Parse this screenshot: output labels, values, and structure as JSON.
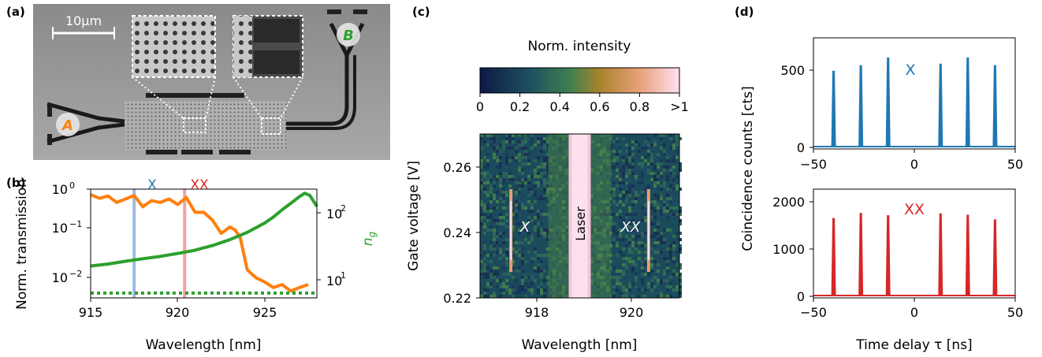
{
  "panels": {
    "a": {
      "label": "(a)",
      "scale_bar": "10µm",
      "port_a": "A",
      "port_b": "B"
    },
    "b": {
      "label": "(b)",
      "ylabel": "Norm. transmission",
      "ylabel_right": "n",
      "ylabel_right_sub": "g",
      "xlabel": "Wavelength [nm]",
      "marker_x": "X",
      "marker_xx": "XX",
      "xticks": [
        "915",
        "920",
        "925"
      ],
      "yticks_left": [
        "10",
        "10",
        "10"
      ],
      "yticks_left_exp": [
        "0",
        "−1",
        "−2"
      ],
      "yticks_right": [
        "10",
        "10"
      ],
      "yticks_right_exp": [
        "2",
        "1"
      ]
    },
    "c": {
      "label": "(c)",
      "colorbar_title": "Norm. intensity",
      "colorbar_ticks": [
        "0",
        "0.2",
        "0.4",
        "0.6",
        "0.8",
        ">1"
      ],
      "ylabel": "Gate voltage [V]",
      "xlabel": "Wavelength [nm]",
      "xticks": [
        "918",
        "920"
      ],
      "yticks": [
        "0.26",
        "0.24",
        "0.22"
      ],
      "annot_x": "X",
      "annot_xx": "XX",
      "annot_laser": "Laser"
    },
    "d": {
      "label": "(d)",
      "ylabel": "Coincidence counts [cts]",
      "xlabel": "Time delay τ [ns]",
      "top_label": "X",
      "bottom_label": "XX",
      "xticks": [
        "−50",
        "0",
        "50"
      ],
      "top_yticks": [
        "500",
        "0"
      ],
      "bottom_yticks": [
        "2000",
        "1000",
        "0"
      ]
    }
  },
  "colors": {
    "blue": "#1f77b4",
    "orange": "#ff7f0e",
    "green": "#2ca02c",
    "red": "#d62728"
  },
  "chart_data": [
    {
      "type": "line",
      "panel": "b",
      "xlim": [
        915,
        928
      ],
      "ylim_left": [
        0.0035,
        1.0
      ],
      "ylim_right": [
        6,
        170
      ],
      "log_left": true,
      "log_right": true,
      "series": [
        {
          "axis": "left",
          "color": "#ff7f0e",
          "x": [
            915,
            915.5,
            916,
            916.5,
            917,
            917.5,
            918,
            918.5,
            919,
            919.5,
            920,
            920.5,
            921,
            921.5,
            922,
            922.5,
            923,
            923.3,
            923.6,
            924,
            924.5,
            925,
            925.5,
            926,
            926.5,
            927,
            927.5
          ],
          "y": [
            0.75,
            0.62,
            0.7,
            0.5,
            0.6,
            0.72,
            0.4,
            0.55,
            0.5,
            0.6,
            0.45,
            0.65,
            0.3,
            0.3,
            0.2,
            0.1,
            0.14,
            0.12,
            0.08,
            0.015,
            0.01,
            0.008,
            0.006,
            0.007,
            0.005,
            0.006,
            0.007
          ]
        },
        {
          "axis": "right",
          "color": "#2ca02c",
          "x": [
            915,
            916,
            917,
            918,
            919,
            920,
            921,
            922,
            923,
            924,
            925,
            925.5,
            926,
            926.5,
            927,
            927.3,
            927.6,
            928
          ],
          "y": [
            16,
            17,
            18.5,
            20,
            21.5,
            23.5,
            26,
            30,
            36,
            45,
            60,
            72,
            90,
            110,
            135,
            150,
            140,
            100
          ]
        },
        {
          "axis": "left",
          "color": "#2ca02c",
          "style": "dotted",
          "x": [
            915,
            928
          ],
          "y": [
            0.0045,
            0.0045
          ]
        }
      ],
      "vlines": [
        917.5,
        920.4
      ]
    },
    {
      "type": "heatmap",
      "panel": "c",
      "xlim": [
        916.8,
        921
      ],
      "ylim": [
        0.22,
        0.27
      ],
      "lines": [
        {
          "name": "X",
          "wavelength": 917.45
        },
        {
          "name": "Laser",
          "wavelength": 918.9
        },
        {
          "name": "XX",
          "wavelength": 920.35
        }
      ],
      "colorbar_range": [
        0,
        1
      ]
    },
    {
      "type": "bar",
      "panel": "d-top",
      "xlim": [
        -50,
        50
      ],
      "ylim": [
        0,
        700
      ],
      "x": [
        -40,
        -26.5,
        -13,
        13,
        26.5,
        40
      ],
      "values": [
        490,
        525,
        575,
        535,
        575,
        525
      ]
    },
    {
      "type": "bar",
      "panel": "d-bottom",
      "xlim": [
        -50,
        50
      ],
      "ylim": [
        0,
        2300
      ],
      "x": [
        -40,
        -26.5,
        -13,
        13,
        26.5,
        40
      ],
      "values": [
        1680,
        1790,
        1740,
        1780,
        1750,
        1650
      ]
    }
  ]
}
